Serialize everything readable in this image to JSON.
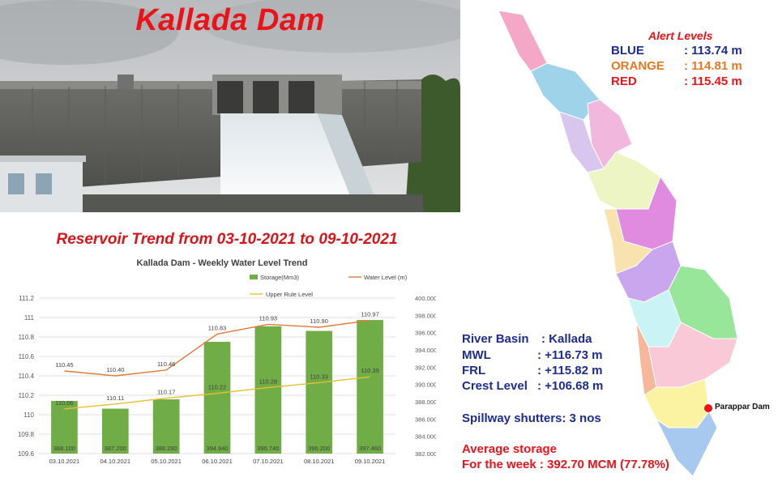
{
  "title": "Kallada Dam",
  "trend_heading": "Reservoir Trend from 03-10-2021 to 09-10-2021",
  "alert": {
    "title": "Alert Levels",
    "levels": [
      {
        "name": "BLUE",
        "value": ": 113.74 m",
        "color": "#1d2c8f"
      },
      {
        "name": "ORANGE",
        "value": ": 114.81 m",
        "color": "#e87722"
      },
      {
        "name": "RED",
        "value": ": 115.45 m",
        "color": "#e8141a"
      }
    ]
  },
  "info": {
    "river_basin_label": "River Basin",
    "river_basin_value": ": Kallada",
    "mwl_label": "MWL",
    "mwl_value": ": +116.73 m",
    "frl_label": "FRL",
    "frl_value": ": +115.82 m",
    "crest_label": "Crest Level",
    "crest_value": ": +106.68 m",
    "spillway": "Spillway shutters: 3 nos",
    "avg_storage_label": "Average storage",
    "avg_storage_week": "For the week  :  392.70 MCM (77.78%)"
  },
  "map_marker": "Parappar Dam",
  "colors": {
    "accent_red": "#e8141a",
    "text_blue": "#1d2c8f",
    "bar_green": "#70ad47",
    "level_line": "#e07b39",
    "rule_line": "#e6c12e"
  },
  "chart_data": {
    "type": "bar",
    "title": "Kallada Dam - Weekly Water Level Trend",
    "categories": [
      "03.10.2021",
      "04.10.2021",
      "05.10.2021",
      "06.10.2021",
      "07.10.2021",
      "08.10.2021",
      "09.10.2021"
    ],
    "series": [
      {
        "name": "Storage(Mm3)",
        "type": "bar",
        "axis": "right",
        "values": [
          388.1,
          387.2,
          388.28,
          394.94,
          396.74,
          396.2,
          397.46
        ],
        "labels": [
          "388.100",
          "387.200",
          "388.280",
          "394.940",
          "396.740",
          "396.200",
          "397.460"
        ]
      },
      {
        "name": "Water Level (m)",
        "type": "line",
        "axis": "left",
        "values": [
          110.45,
          110.4,
          110.46,
          110.83,
          110.93,
          110.9,
          110.97
        ],
        "labels": [
          "110.45",
          "110.40",
          "110.46",
          "110.83",
          "110.93",
          "110.90",
          "110.97"
        ]
      },
      {
        "name": "Upper Rule Level",
        "type": "line",
        "axis": "left",
        "values": [
          110.06,
          110.11,
          110.17,
          110.22,
          110.28,
          110.33,
          110.39
        ],
        "labels": [
          "110.06",
          "110.11",
          "110.17",
          "110.22",
          "110.28",
          "110.33",
          "110.39"
        ]
      }
    ],
    "y_left": {
      "min": 109.6,
      "max": 111.2,
      "ticks": [
        "111.2",
        "111",
        "110.8",
        "110.6",
        "110.4",
        "110.2",
        "110",
        "109.8",
        "109.6"
      ]
    },
    "y_right": {
      "min": 382.0,
      "max": 400.0,
      "ticks": [
        "400.000",
        "398.000",
        "396.000",
        "394.000",
        "392.000",
        "390.000",
        "388.000",
        "386.000",
        "384.000",
        "382.000"
      ]
    },
    "grid": true,
    "legend_position": "top-right"
  }
}
